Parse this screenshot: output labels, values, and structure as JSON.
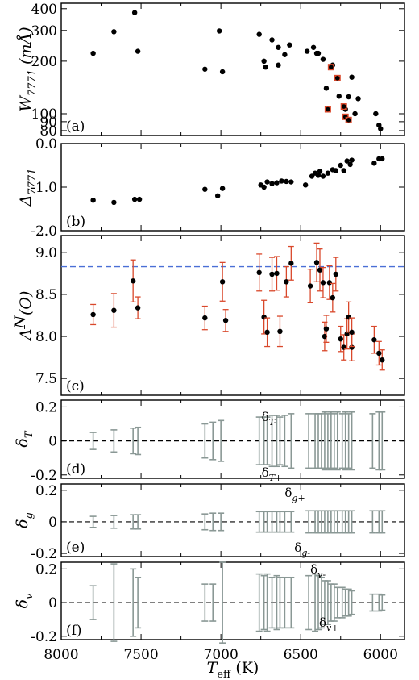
{
  "chart_data": [
    {
      "type": "scatter",
      "panel": "(a)",
      "ylabel": "W7771 (mÅ)",
      "ylabel_main": "W",
      "ylabel_sub": "7771",
      "ylabel_unit": " (mÅ)",
      "ylim": [
        75,
        430
      ],
      "yscale": "log",
      "yticks": [
        80,
        90,
        100,
        200,
        300,
        400
      ],
      "points": [
        [
          7800,
          222
        ],
        [
          7670,
          295
        ],
        [
          7540,
          380
        ],
        [
          7520,
          228
        ],
        [
          7100,
          180
        ],
        [
          7010,
          298
        ],
        [
          6990,
          174
        ],
        [
          6760,
          285
        ],
        [
          6730,
          200
        ],
        [
          6720,
          185
        ],
        [
          6680,
          265
        ],
        [
          6640,
          240
        ],
        [
          6640,
          190
        ],
        [
          6600,
          218
        ],
        [
          6570,
          248
        ],
        [
          6460,
          228
        ],
        [
          6420,
          240
        ],
        [
          6400,
          222
        ],
        [
          6390,
          222
        ],
        [
          6360,
          205
        ],
        [
          6340,
          140
        ],
        [
          6300,
          190
        ],
        [
          6260,
          126
        ],
        [
          6220,
          106
        ],
        [
          6200,
          125
        ],
        [
          6180,
          162
        ],
        [
          6160,
          100
        ],
        [
          6140,
          122
        ],
        [
          6030,
          100
        ],
        [
          6010,
          86
        ],
        [
          6000,
          82
        ]
      ],
      "red_boxed": [
        [
          6330,
          106
        ],
        [
          6310,
          185
        ],
        [
          6270,
          160
        ],
        [
          6230,
          110
        ],
        [
          6220,
          96
        ],
        [
          6200,
          92
        ]
      ]
    },
    {
      "type": "scatter",
      "panel": "(b)",
      "ylabel": "Δ7771",
      "ylabel_main": "Δ",
      "ylabel_sub": "7771",
      "ylim": [
        -2.0,
        0.0
      ],
      "yticks": [
        -2.0,
        -1.0,
        0.0
      ],
      "points": [
        [
          7800,
          -1.3
        ],
        [
          7670,
          -1.35
        ],
        [
          7540,
          -1.28
        ],
        [
          7510,
          -1.28
        ],
        [
          7100,
          -1.05
        ],
        [
          7020,
          -1.2
        ],
        [
          6990,
          -1.03
        ],
        [
          6750,
          -0.95
        ],
        [
          6730,
          -1.0
        ],
        [
          6710,
          -0.88
        ],
        [
          6680,
          -0.92
        ],
        [
          6650,
          -0.9
        ],
        [
          6620,
          -0.86
        ],
        [
          6590,
          -0.87
        ],
        [
          6560,
          -0.88
        ],
        [
          6470,
          -0.95
        ],
        [
          6430,
          -0.75
        ],
        [
          6410,
          -0.68
        ],
        [
          6390,
          -0.73
        ],
        [
          6380,
          -0.64
        ],
        [
          6360,
          -0.75
        ],
        [
          6330,
          -0.68
        ],
        [
          6300,
          -0.6
        ],
        [
          6280,
          -0.62
        ],
        [
          6250,
          -0.5
        ],
        [
          6230,
          -0.62
        ],
        [
          6210,
          -0.4
        ],
        [
          6190,
          -0.48
        ],
        [
          6180,
          -0.38
        ],
        [
          6040,
          -0.45
        ],
        [
          6010,
          -0.35
        ],
        [
          5990,
          -0.35
        ]
      ]
    },
    {
      "type": "scatter",
      "panel": "(c)",
      "ylabel": "A^N(O)",
      "ylabel_main": "A",
      "ylabel_sup": "N",
      "ylabel_rest": "(O)",
      "ylim": [
        7.3,
        9.2
      ],
      "yticks": [
        7.5,
        8.0,
        8.5,
        9.0
      ],
      "yticklabels": [
        "7.5",
        "8.0",
        "8.5",
        "9.0"
      ],
      "reference_line": 8.83,
      "points": [
        [
          7800,
          8.26,
          0.12
        ],
        [
          7670,
          8.31,
          0.2
        ],
        [
          7550,
          8.66,
          0.25
        ],
        [
          7520,
          8.34,
          0.13
        ],
        [
          7100,
          8.22,
          0.14
        ],
        [
          6990,
          8.65,
          0.23
        ],
        [
          6970,
          8.19,
          0.13
        ],
        [
          6760,
          8.76,
          0.22
        ],
        [
          6730,
          8.23,
          0.2
        ],
        [
          6710,
          8.05,
          0.17
        ],
        [
          6680,
          8.74,
          0.2
        ],
        [
          6650,
          8.75,
          0.2
        ],
        [
          6630,
          8.06,
          0.18
        ],
        [
          6590,
          8.65,
          0.18
        ],
        [
          6560,
          8.87,
          0.2
        ],
        [
          6440,
          8.6,
          0.2
        ],
        [
          6400,
          8.88,
          0.23
        ],
        [
          6380,
          8.79,
          0.25
        ],
        [
          6360,
          8.64,
          0.18
        ],
        [
          6350,
          8.0,
          0.17
        ],
        [
          6340,
          8.09,
          0.16
        ],
        [
          6320,
          8.64,
          0.2
        ],
        [
          6300,
          8.46,
          0.17
        ],
        [
          6280,
          8.74,
          0.2
        ],
        [
          6250,
          7.97,
          0.15
        ],
        [
          6230,
          7.87,
          0.15
        ],
        [
          6210,
          8.03,
          0.18
        ],
        [
          6200,
          8.23,
          0.18
        ],
        [
          6180,
          7.87,
          0.16
        ],
        [
          6180,
          8.05,
          0.17
        ],
        [
          6040,
          7.96,
          0.16
        ],
        [
          6010,
          7.8,
          0.14
        ],
        [
          5990,
          7.72,
          0.12
        ]
      ]
    },
    {
      "type": "errorbar",
      "panel": "(d)",
      "ylabel": "δT",
      "ylabel_main": "δ",
      "ylabel_sub": "T",
      "ylim": [
        -0.22,
        0.24
      ],
      "yticks": [
        -0.2,
        0,
        0.2
      ],
      "yticklabels": [
        "-0.2",
        "0",
        "0.2"
      ],
      "annotations": [
        "δT-",
        "δT+"
      ],
      "bars": [
        [
          7800,
          0.05
        ],
        [
          7670,
          0.065
        ],
        [
          7550,
          0.075
        ],
        [
          7520,
          0.08
        ],
        [
          7100,
          0.1
        ],
        [
          7050,
          0.11
        ],
        [
          7000,
          0.12
        ],
        [
          6760,
          0.14
        ],
        [
          6730,
          0.14
        ],
        [
          6710,
          0.14
        ],
        [
          6680,
          0.15
        ],
        [
          6650,
          0.15
        ],
        [
          6630,
          0.14
        ],
        [
          6600,
          0.15
        ],
        [
          6560,
          0.16
        ],
        [
          6450,
          0.16
        ],
        [
          6410,
          0.16
        ],
        [
          6390,
          0.16
        ],
        [
          6370,
          0.16
        ],
        [
          6350,
          0.17
        ],
        [
          6330,
          0.16
        ],
        [
          6310,
          0.17
        ],
        [
          6290,
          0.16
        ],
        [
          6270,
          0.17
        ],
        [
          6240,
          0.16
        ],
        [
          6220,
          0.17
        ],
        [
          6200,
          0.16
        ],
        [
          6180,
          0.17
        ],
        [
          6050,
          0.16
        ],
        [
          6010,
          0.17
        ],
        [
          5990,
          0.17
        ]
      ]
    },
    {
      "type": "errorbar",
      "panel": "(e)",
      "ylabel": "δg",
      "ylabel_main": "δ",
      "ylabel_sub": "g",
      "ylim": [
        -0.22,
        0.24
      ],
      "yticks": [
        -0.2,
        0,
        0.2
      ],
      "yticklabels": [
        "-0.2",
        "0",
        "0.2"
      ],
      "annotations": [
        "δg+",
        "δg-"
      ],
      "bars": [
        [
          7800,
          0.035
        ],
        [
          7670,
          0.04
        ],
        [
          7550,
          0.045
        ],
        [
          7520,
          0.045
        ],
        [
          7100,
          0.05
        ],
        [
          7050,
          0.055
        ],
        [
          7000,
          0.055
        ],
        [
          6760,
          0.065
        ],
        [
          6730,
          0.065
        ],
        [
          6710,
          0.065
        ],
        [
          6680,
          0.065
        ],
        [
          6650,
          0.065
        ],
        [
          6630,
          0.065
        ],
        [
          6600,
          0.065
        ],
        [
          6560,
          0.065
        ],
        [
          6450,
          0.07
        ],
        [
          6410,
          0.07
        ],
        [
          6390,
          0.07
        ],
        [
          6370,
          0.07
        ],
        [
          6350,
          0.07
        ],
        [
          6330,
          0.07
        ],
        [
          6310,
          0.07
        ],
        [
          6290,
          0.07
        ],
        [
          6270,
          0.07
        ],
        [
          6240,
          0.07
        ],
        [
          6220,
          0.07
        ],
        [
          6200,
          0.07
        ],
        [
          6180,
          0.07
        ],
        [
          6050,
          0.07
        ],
        [
          6010,
          0.07
        ],
        [
          5990,
          0.07
        ]
      ]
    },
    {
      "type": "errorbar",
      "panel": "(f)",
      "ylabel": "δv",
      "ylabel_main": "δ",
      "ylabel_sub": "v",
      "ylim": [
        -0.22,
        0.24
      ],
      "yticks": [
        -0.2,
        0,
        0.2
      ],
      "yticklabels": [
        "-0.2",
        "0",
        "0.2"
      ],
      "annotations": [
        "δv-",
        "δv+"
      ],
      "bars": [
        [
          7800,
          0.1
        ],
        [
          7670,
          0.23
        ],
        [
          7550,
          0.2
        ],
        [
          7520,
          0.15
        ],
        [
          7100,
          0.11
        ],
        [
          7050,
          0.11
        ],
        [
          6990,
          0.24
        ],
        [
          6760,
          0.17
        ],
        [
          6730,
          0.16
        ],
        [
          6710,
          0.17
        ],
        [
          6680,
          0.15
        ],
        [
          6650,
          0.16
        ],
        [
          6630,
          0.15
        ],
        [
          6600,
          0.15
        ],
        [
          6560,
          0.15
        ],
        [
          6450,
          0.16
        ],
        [
          6410,
          0.17
        ],
        [
          6390,
          0.16
        ],
        [
          6370,
          0.15
        ],
        [
          6350,
          0.13
        ],
        [
          6330,
          0.13
        ],
        [
          6310,
          0.11
        ],
        [
          6290,
          0.11
        ],
        [
          6270,
          0.09
        ],
        [
          6240,
          0.09
        ],
        [
          6220,
          0.08
        ],
        [
          6200,
          0.08
        ],
        [
          6180,
          0.07
        ],
        [
          6050,
          0.05
        ],
        [
          6010,
          0.05
        ],
        [
          5990,
          0.045
        ]
      ]
    }
  ],
  "xaxis": {
    "label_main": "T",
    "label_sub": "eff",
    "label_unit": " (K)",
    "xlim": [
      8000,
      5850
    ],
    "ticks": [
      8000,
      7500,
      7000,
      6500,
      6000
    ],
    "ticklabels": [
      "8000",
      "7500",
      "7000",
      "6500",
      "6000"
    ]
  },
  "colors": {
    "points": "#000000",
    "error_red": "#d9482b",
    "error_gray": "#8a9895",
    "reference_line": "#4a6fd6"
  }
}
